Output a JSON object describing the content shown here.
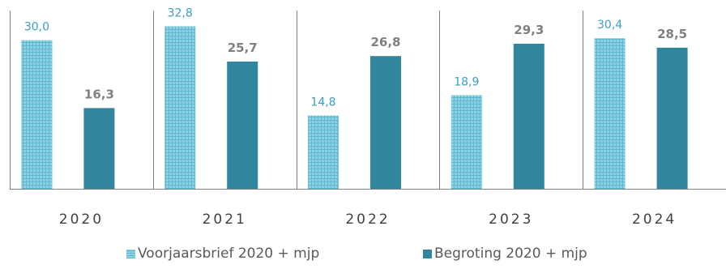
{
  "chart_data": {
    "type": "bar",
    "categories": [
      "2020",
      "2021",
      "2022",
      "2023",
      "2024"
    ],
    "series": [
      {
        "name": "Voorjaarsbrief 2020 + mjp",
        "values": [
          30.0,
          32.8,
          14.8,
          18.9,
          30.4
        ],
        "labels": [
          "30,0",
          "32,8",
          "14,8",
          "18,9",
          "30,4"
        ],
        "color": "#4FB3CF",
        "label_color": "#3A9FC4",
        "pattern": "grid-texture"
      },
      {
        "name": "Begroting 2020 + mjp",
        "values": [
          16.3,
          25.7,
          26.8,
          29.3,
          28.5
        ],
        "labels": [
          "16,3",
          "25,7",
          "26,8",
          "29,3",
          "28,5"
        ],
        "color": "#31859C",
        "label_color": "#808080",
        "label_weight": "bold"
      }
    ],
    "title": "",
    "xlabel": "",
    "ylabel": "",
    "ylim": [
      0,
      36
    ],
    "grid": false,
    "category_separators": true,
    "legend": "bottom"
  }
}
